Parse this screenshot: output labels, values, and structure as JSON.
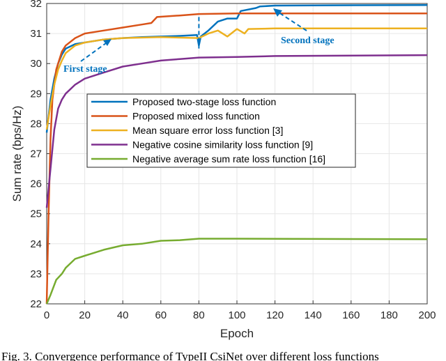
{
  "chart_data": {
    "type": "line",
    "xlabel": "Epoch",
    "ylabel": "Sum rate (bps/Hz)",
    "xlim": [
      0,
      200
    ],
    "ylim": [
      22,
      32
    ],
    "xticks": [
      0,
      20,
      40,
      60,
      80,
      100,
      120,
      140,
      160,
      180,
      200
    ],
    "yticks": [
      22,
      23,
      24,
      25,
      26,
      27,
      28,
      29,
      30,
      31,
      32
    ],
    "grid": true,
    "legend_placement": "center-left",
    "series": [
      {
        "name": "Proposed two-stage loss function",
        "color": "#0072bd",
        "x": [
          0,
          2,
          4,
          6,
          8,
          10,
          15,
          20,
          30,
          40,
          50,
          60,
          70,
          79,
          80,
          81,
          85,
          90,
          95,
          100,
          102,
          110,
          112,
          120,
          150,
          200
        ],
        "y": [
          27.7,
          28.8,
          29.5,
          30.0,
          30.3,
          30.5,
          30.65,
          30.7,
          30.8,
          30.85,
          30.88,
          30.9,
          30.92,
          30.95,
          30.6,
          30.9,
          31.1,
          31.4,
          31.5,
          31.5,
          31.75,
          31.85,
          31.9,
          31.93,
          31.94,
          31.95
        ]
      },
      {
        "name": "Proposed mixed loss function",
        "color": "#d95319",
        "x": [
          0,
          1,
          2,
          3,
          5,
          8,
          10,
          15,
          20,
          30,
          40,
          50,
          55,
          58,
          70,
          80,
          100,
          200
        ],
        "y": [
          22,
          25,
          27.5,
          28.8,
          29.8,
          30.4,
          30.6,
          30.85,
          31.0,
          31.1,
          31.2,
          31.3,
          31.35,
          31.55,
          31.6,
          31.65,
          31.67,
          31.67
        ]
      },
      {
        "name": "Mean square error loss function [3]",
        "color": "#edb120",
        "x": [
          0,
          2,
          4,
          6,
          8,
          10,
          15,
          20,
          30,
          40,
          60,
          80,
          85,
          90,
          95,
          100,
          104,
          106,
          120,
          200
        ],
        "y": [
          27.8,
          28.6,
          29.3,
          29.8,
          30.1,
          30.35,
          30.6,
          30.7,
          30.8,
          30.85,
          30.88,
          30.85,
          31.0,
          31.1,
          30.9,
          31.15,
          31.0,
          31.15,
          31.17,
          31.17
        ]
      },
      {
        "name": "Negative cosine similarity loss function [9]",
        "color": "#7e2f8e",
        "x": [
          0,
          2,
          4,
          6,
          8,
          10,
          15,
          20,
          30,
          40,
          50,
          60,
          70,
          80,
          100,
          120,
          200
        ],
        "y": [
          25.2,
          26.5,
          27.8,
          28.5,
          28.8,
          29.0,
          29.3,
          29.5,
          29.7,
          29.9,
          30.0,
          30.1,
          30.15,
          30.2,
          30.22,
          30.25,
          30.28
        ]
      },
      {
        "name": "Negative average sum rate loss function [16]",
        "color": "#77ac30",
        "x": [
          0,
          2,
          5,
          8,
          10,
          15,
          20,
          30,
          40,
          50,
          60,
          70,
          80,
          100,
          200
        ],
        "y": [
          22,
          22.3,
          22.8,
          23.0,
          23.2,
          23.5,
          23.6,
          23.8,
          23.95,
          24.0,
          24.1,
          24.12,
          24.17,
          24.17,
          24.15
        ]
      }
    ],
    "annotations": [
      {
        "text": "First stage",
        "color": "#0072bd"
      },
      {
        "text": "Second stage",
        "color": "#0072bd"
      }
    ]
  },
  "caption": "Fig. 3.  Convergence performance of TypeII CsiNet over different loss functions"
}
